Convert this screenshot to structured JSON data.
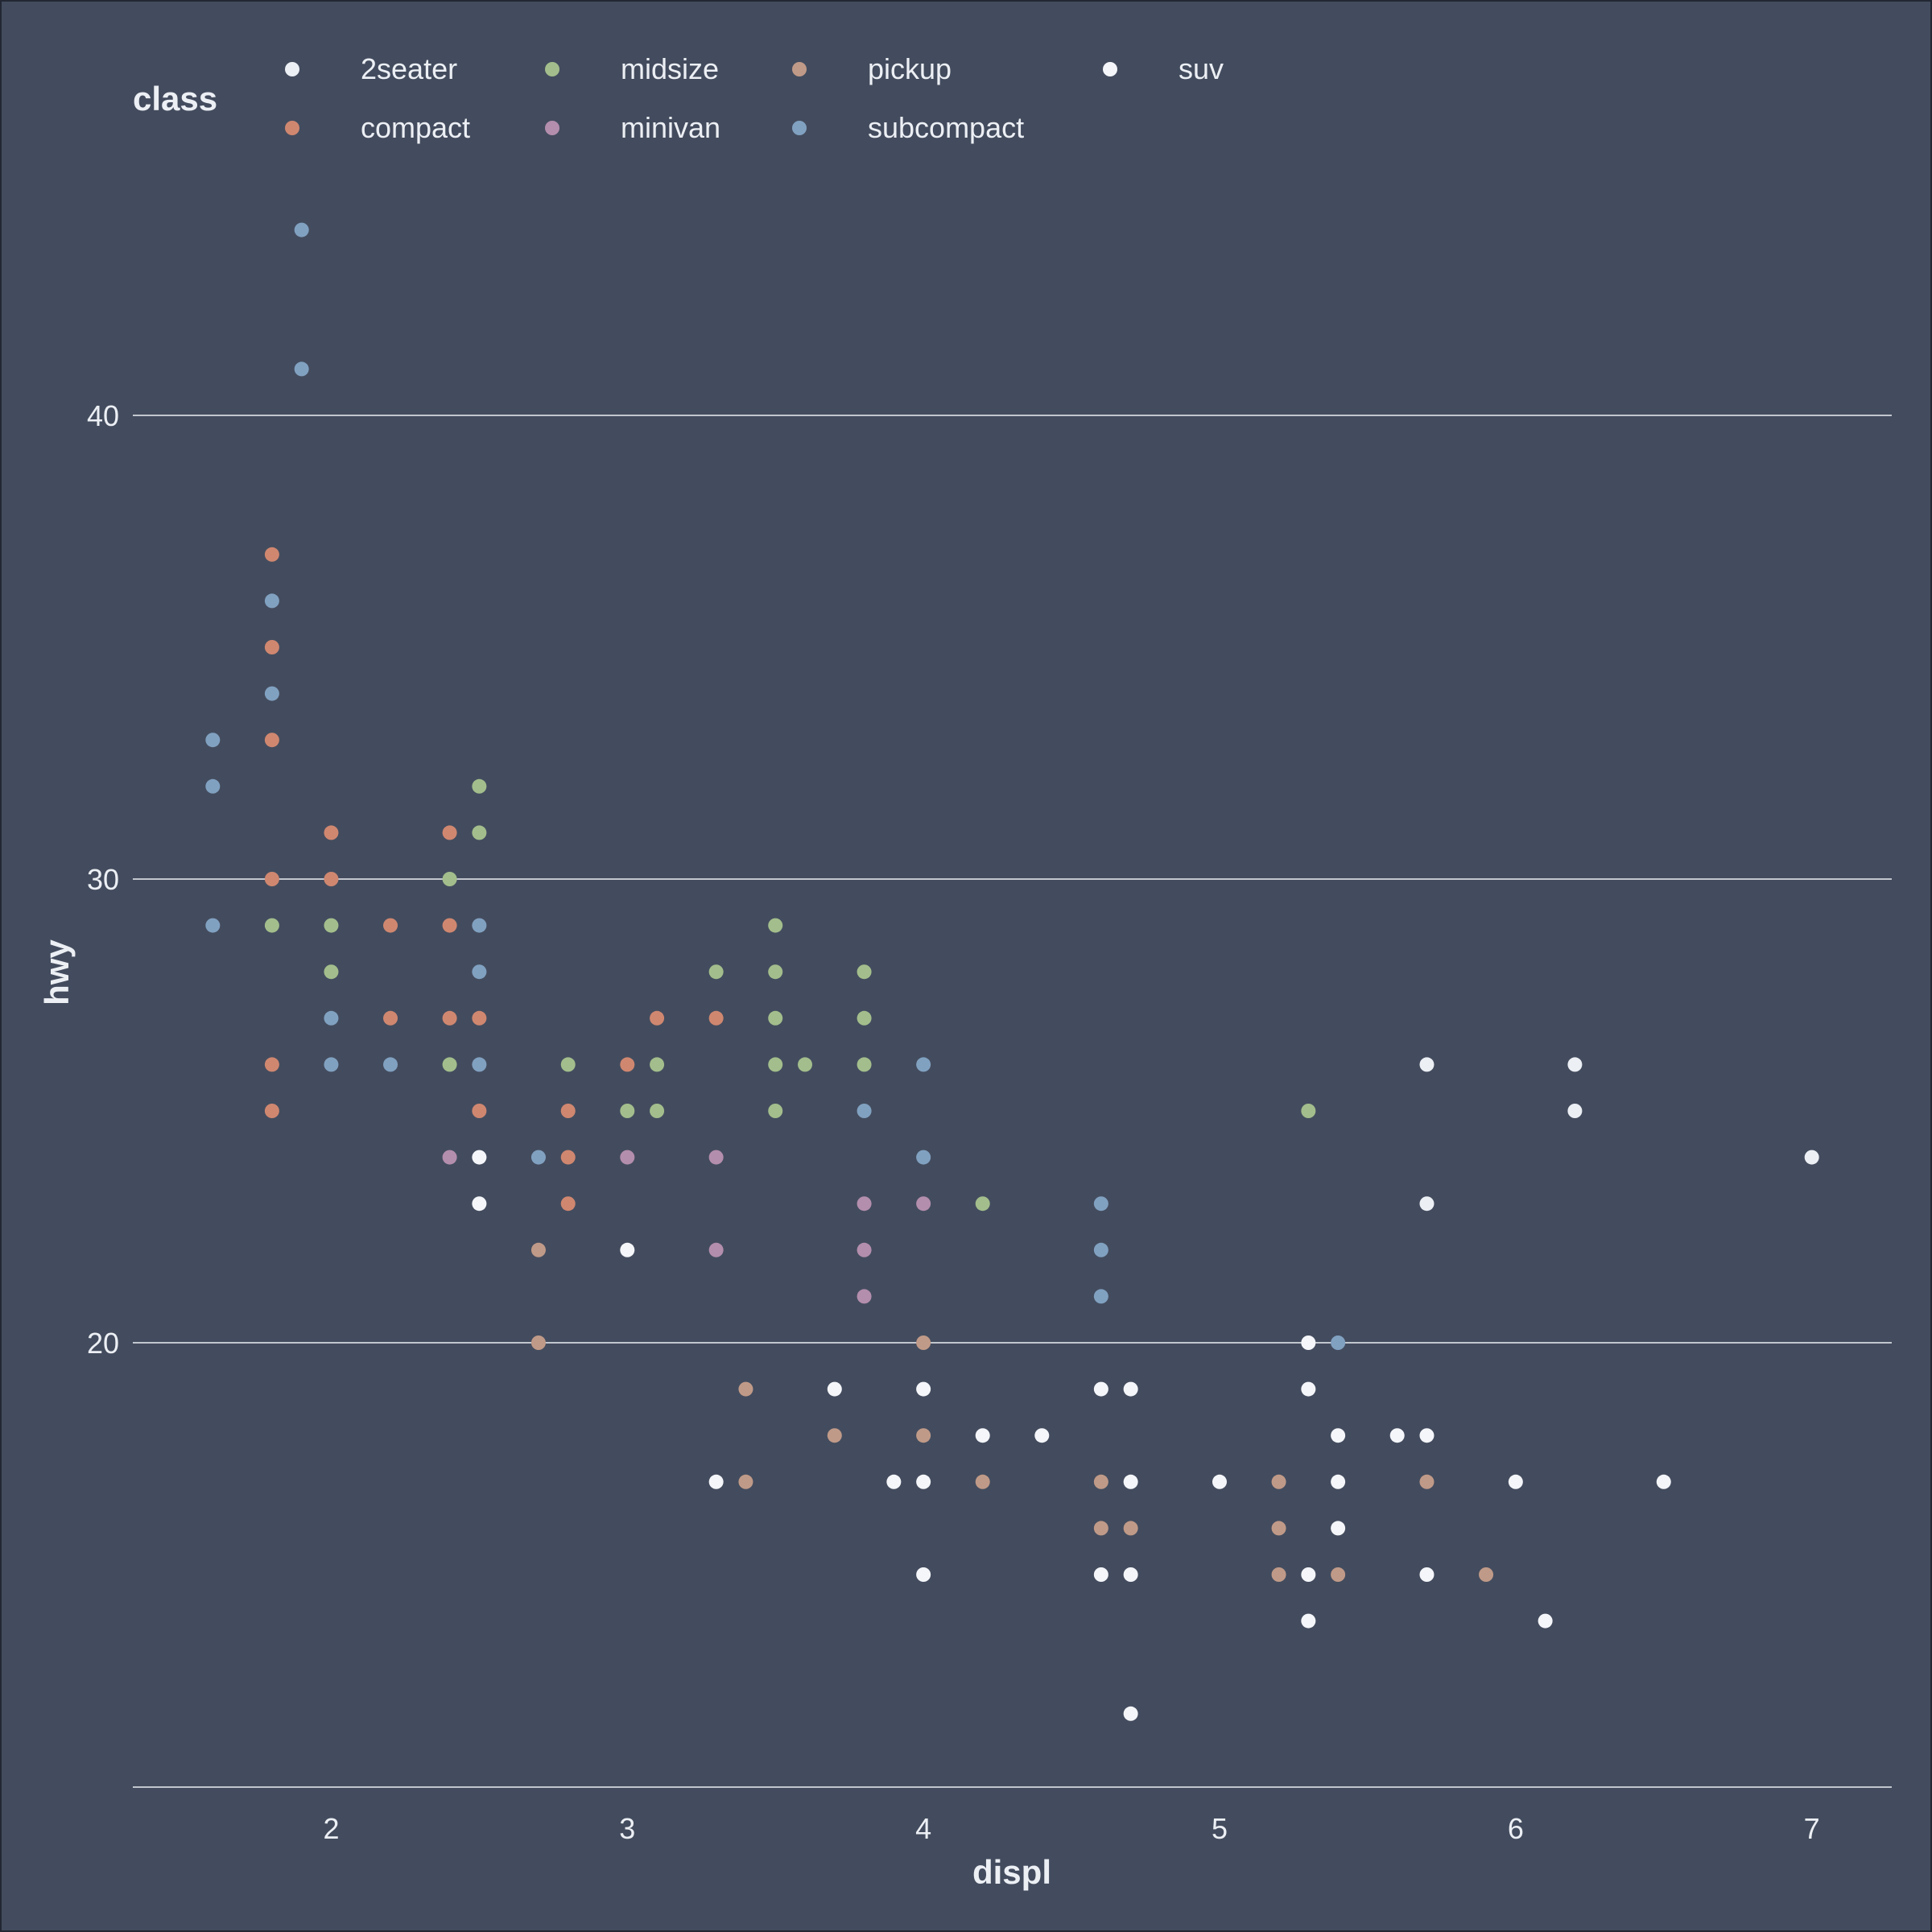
{
  "chart_data": {
    "type": "scatter",
    "xlabel": "displ",
    "ylabel": "hwy",
    "xlim": [
      1.33,
      7.27
    ],
    "ylim": [
      10,
      45.5
    ],
    "x_ticks": [
      "2",
      "3",
      "4",
      "5",
      "6",
      "7"
    ],
    "y_ticks": [
      "20",
      "30",
      "40"
    ],
    "grid": "horizontal major",
    "legend": {
      "title": "class",
      "placement": "top",
      "entries": [
        {
          "label": "2seater",
          "color": "#eceff4"
        },
        {
          "label": "compact",
          "color": "#d08770"
        },
        {
          "label": "midsize",
          "color": "#a3be8c"
        },
        {
          "label": "minivan",
          "color": "#b48ead"
        },
        {
          "label": "pickup",
          "color": "#c09a88"
        },
        {
          "label": "subcompact",
          "color": "#81a1c1"
        },
        {
          "label": "suv",
          "color": "#f5f6fa"
        }
      ]
    },
    "series": [
      {
        "name": "2seater",
        "color": "#eceff4",
        "points": [
          [
            5.7,
            26
          ],
          [
            5.7,
            23
          ],
          [
            6.2,
            26
          ],
          [
            6.2,
            25
          ],
          [
            7.0,
            24
          ]
        ]
      },
      {
        "name": "compact",
        "color": "#d08770",
        "points": [
          [
            1.8,
            37
          ],
          [
            1.8,
            35
          ],
          [
            1.8,
            33
          ],
          [
            1.8,
            30
          ],
          [
            1.8,
            26
          ],
          [
            1.8,
            25
          ],
          [
            2.0,
            31
          ],
          [
            2.0,
            30
          ],
          [
            2.2,
            29
          ],
          [
            2.2,
            27
          ],
          [
            2.4,
            31
          ],
          [
            2.4,
            29
          ],
          [
            2.4,
            27
          ],
          [
            2.5,
            27
          ],
          [
            2.5,
            25
          ],
          [
            2.8,
            25
          ],
          [
            2.8,
            24
          ],
          [
            2.8,
            23
          ],
          [
            3.0,
            26
          ],
          [
            3.1,
            27
          ],
          [
            3.3,
            27
          ]
        ]
      },
      {
        "name": "midsize",
        "color": "#a3be8c",
        "points": [
          [
            1.8,
            29
          ],
          [
            2.0,
            29
          ],
          [
            2.0,
            28
          ],
          [
            2.4,
            30
          ],
          [
            2.4,
            26
          ],
          [
            2.5,
            32
          ],
          [
            2.5,
            31
          ],
          [
            2.8,
            26
          ],
          [
            3.0,
            25
          ],
          [
            3.1,
            26
          ],
          [
            3.1,
            25
          ],
          [
            3.3,
            28
          ],
          [
            3.5,
            29
          ],
          [
            3.5,
            28
          ],
          [
            3.5,
            27
          ],
          [
            3.5,
            26
          ],
          [
            3.5,
            25
          ],
          [
            3.6,
            26
          ],
          [
            3.8,
            28
          ],
          [
            3.8,
            27
          ],
          [
            3.8,
            26
          ],
          [
            4.2,
            23
          ],
          [
            5.3,
            25
          ]
        ]
      },
      {
        "name": "minivan",
        "color": "#b48ead",
        "points": [
          [
            2.4,
            24
          ],
          [
            3.0,
            24
          ],
          [
            3.3,
            24
          ],
          [
            3.3,
            22
          ],
          [
            3.8,
            23
          ],
          [
            3.8,
            22
          ],
          [
            3.8,
            21
          ],
          [
            4.0,
            23
          ]
        ]
      },
      {
        "name": "pickup",
        "color": "#c09a88",
        "points": [
          [
            2.7,
            22
          ],
          [
            2.7,
            20
          ],
          [
            3.4,
            19
          ],
          [
            3.4,
            17
          ],
          [
            3.7,
            18
          ],
          [
            4.0,
            20
          ],
          [
            4.0,
            18
          ],
          [
            4.2,
            17
          ],
          [
            4.6,
            17
          ],
          [
            4.6,
            16
          ],
          [
            4.7,
            16
          ],
          [
            5.2,
            17
          ],
          [
            5.2,
            16
          ],
          [
            5.2,
            15
          ],
          [
            5.4,
            15
          ],
          [
            5.7,
            17
          ],
          [
            5.9,
            15
          ]
        ]
      },
      {
        "name": "subcompact",
        "color": "#81a1c1",
        "points": [
          [
            1.6,
            33
          ],
          [
            1.6,
            32
          ],
          [
            1.6,
            29
          ],
          [
            1.8,
            36
          ],
          [
            1.8,
            34
          ],
          [
            1.9,
            44
          ],
          [
            1.9,
            41
          ],
          [
            2.0,
            27
          ],
          [
            2.0,
            26
          ],
          [
            2.2,
            26
          ],
          [
            2.5,
            29
          ],
          [
            2.5,
            28
          ],
          [
            2.5,
            26
          ],
          [
            2.7,
            24
          ],
          [
            3.8,
            25
          ],
          [
            4.0,
            26
          ],
          [
            4.0,
            24
          ],
          [
            4.6,
            23
          ],
          [
            4.6,
            22
          ],
          [
            4.6,
            21
          ],
          [
            5.4,
            20
          ]
        ]
      },
      {
        "name": "suv",
        "color": "#f5f6fa",
        "points": [
          [
            2.5,
            24
          ],
          [
            2.5,
            23
          ],
          [
            3.0,
            22
          ],
          [
            3.3,
            17
          ],
          [
            3.7,
            19
          ],
          [
            3.9,
            17
          ],
          [
            4.0,
            19
          ],
          [
            4.0,
            17
          ],
          [
            4.0,
            15
          ],
          [
            4.2,
            18
          ],
          [
            4.4,
            18
          ],
          [
            4.6,
            19
          ],
          [
            4.6,
            15
          ],
          [
            4.7,
            19
          ],
          [
            4.7,
            17
          ],
          [
            4.7,
            15
          ],
          [
            4.7,
            12
          ],
          [
            5.0,
            17
          ],
          [
            5.3,
            20
          ],
          [
            5.3,
            19
          ],
          [
            5.3,
            15
          ],
          [
            5.3,
            14
          ],
          [
            5.4,
            18
          ],
          [
            5.4,
            17
          ],
          [
            5.4,
            16
          ],
          [
            5.6,
            18
          ],
          [
            5.7,
            18
          ],
          [
            5.7,
            15
          ],
          [
            6.0,
            17
          ],
          [
            6.1,
            14
          ],
          [
            6.5,
            17
          ]
        ]
      }
    ]
  }
}
